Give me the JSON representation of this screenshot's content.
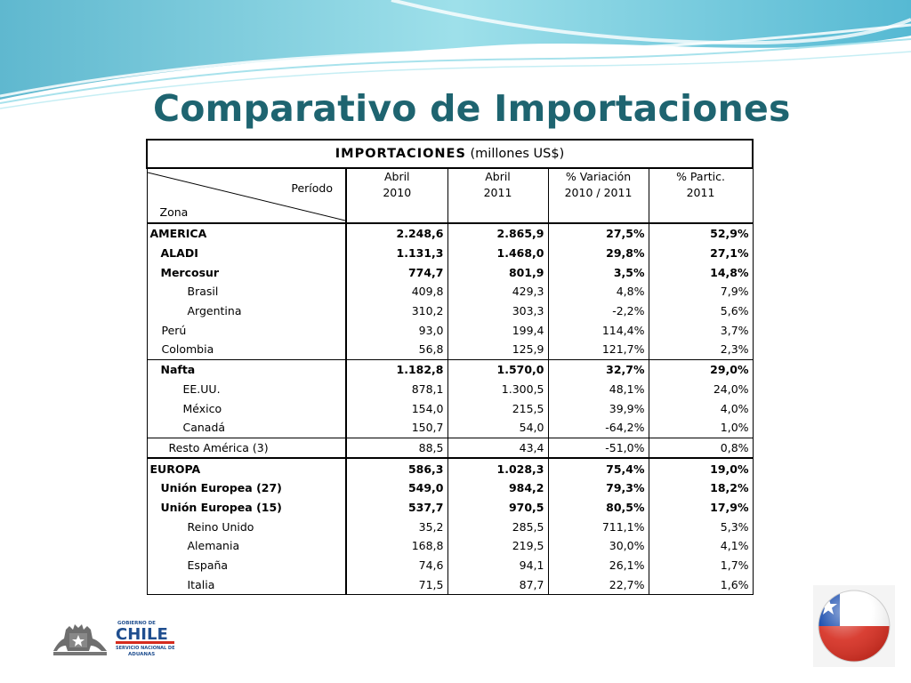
{
  "slide": {
    "title": "Comparativo de Importaciones"
  },
  "table": {
    "title_bold": "IMPORTACIONES",
    "title_rest": " (millones US$)",
    "header": {
      "periodo": "Período",
      "zona": "Zona",
      "col1_l1": "Abril",
      "col1_l2": "2010",
      "col2_l1": "Abril",
      "col2_l2": "2011",
      "col3_l1": "% Variación",
      "col3_l2": "2010 / 2011",
      "col4_l1": "% Partic.",
      "col4_l2": "2011"
    },
    "rows": [
      {
        "zona": "AMERICA",
        "abril_2010": "2.248,6",
        "abril_2011": "2.865,9",
        "variacion": "27,5%",
        "particip": "52,9%"
      },
      {
        "zona": "ALADI",
        "abril_2010": "1.131,3",
        "abril_2011": "1.468,0",
        "variacion": "29,8%",
        "particip": "27,1%"
      },
      {
        "zona": "Mercosur",
        "abril_2010": "774,7",
        "abril_2011": "801,9",
        "variacion": "3,5%",
        "particip": "14,8%"
      },
      {
        "zona": "Brasil",
        "abril_2010": "409,8",
        "abril_2011": "429,3",
        "variacion": "4,8%",
        "particip": "7,9%"
      },
      {
        "zona": "Argentina",
        "abril_2010": "310,2",
        "abril_2011": "303,3",
        "variacion": "-2,2%",
        "particip": "5,6%"
      },
      {
        "zona": "Perú",
        "abril_2010": "93,0",
        "abril_2011": "199,4",
        "variacion": "114,4%",
        "particip": "3,7%"
      },
      {
        "zona": "Colombia",
        "abril_2010": "56,8",
        "abril_2011": "125,9",
        "variacion": "121,7%",
        "particip": "2,3%"
      },
      {
        "zona": "Nafta",
        "abril_2010": "1.182,8",
        "abril_2011": "1.570,0",
        "variacion": "32,7%",
        "particip": "29,0%"
      },
      {
        "zona": "EE.UU.",
        "abril_2010": "878,1",
        "abril_2011": "1.300,5",
        "variacion": "48,1%",
        "particip": "24,0%"
      },
      {
        "zona": "México",
        "abril_2010": "154,0",
        "abril_2011": "215,5",
        "variacion": "39,9%",
        "particip": "4,0%"
      },
      {
        "zona": "Canadá",
        "abril_2010": "150,7",
        "abril_2011": "54,0",
        "variacion": "-64,2%",
        "particip": "1,0%"
      },
      {
        "zona": "Resto América (3)",
        "abril_2010": "88,5",
        "abril_2011": "43,4",
        "variacion": "-51,0%",
        "particip": "0,8%"
      },
      {
        "zona": "EUROPA",
        "abril_2010": "586,3",
        "abril_2011": "1.028,3",
        "variacion": "75,4%",
        "particip": "19,0%"
      },
      {
        "zona": "Unión Europea (27)",
        "abril_2010": "549,0",
        "abril_2011": "984,2",
        "variacion": "79,3%",
        "particip": "18,2%"
      },
      {
        "zona": "Unión Europea (15)",
        "abril_2010": "537,7",
        "abril_2011": "970,5",
        "variacion": "80,5%",
        "particip": "17,9%"
      },
      {
        "zona": "Reino Unido",
        "abril_2010": "35,2",
        "abril_2011": "285,5",
        "variacion": "711,1%",
        "particip": "5,3%"
      },
      {
        "zona": "Alemania",
        "abril_2010": "168,8",
        "abril_2011": "219,5",
        "variacion": "30,0%",
        "particip": "4,1%"
      },
      {
        "zona": "España",
        "abril_2010": "74,6",
        "abril_2011": "94,1",
        "variacion": "26,1%",
        "particip": "1,7%"
      },
      {
        "zona": "Italia",
        "abril_2010": "71,5",
        "abril_2011": "87,7",
        "variacion": "22,7%",
        "particip": "1,6%"
      }
    ]
  },
  "logo": {
    "line1": "GOBIERNO DE",
    "line2": "CHILE",
    "line3": "SERVICIO NACIONAL DE",
    "line4": "ADUANAS"
  },
  "colors": {
    "title": "#1e6470",
    "wave": "#7fd0e0",
    "flag_red": "#d52b1e",
    "flag_blue": "#0039a6"
  }
}
